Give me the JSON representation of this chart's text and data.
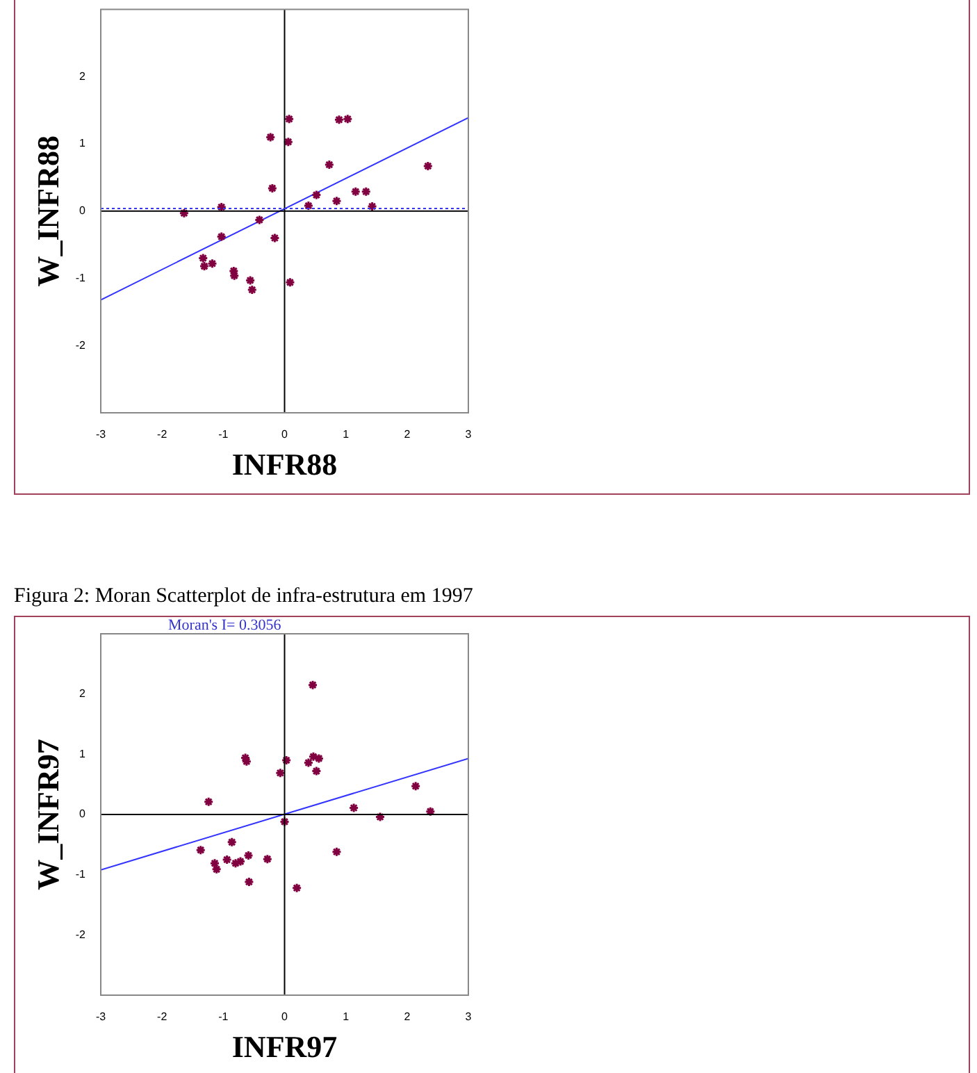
{
  "chart_data": [
    {
      "type": "scatter",
      "xlabel": "INFR88",
      "ylabel": "W_INFR88",
      "xlim": [
        -3,
        3
      ],
      "ylim": [
        -3,
        3
      ],
      "xticks": [
        -3,
        -2,
        -1,
        0,
        1,
        2,
        3
      ],
      "yticks": [
        -2,
        -1,
        0,
        1,
        2
      ],
      "grid": false,
      "legend": false,
      "marker": "cross",
      "series": [
        {
          "color": "#800040",
          "x": [
            0.075,
            -0.23,
            0.06,
            0.89,
            1.03,
            0.73,
            2.34,
            -0.2,
            0.52,
            1.16,
            1.33,
            0.85,
            0.39,
            1.43,
            -1.03,
            -1.64,
            -0.41,
            -1.03,
            -0.16,
            -1.33,
            -1.31,
            -1.18,
            -0.83,
            -0.82,
            -0.56,
            -0.53,
            0.09
          ],
          "values": [
            1.37,
            1.1,
            1.03,
            1.36,
            1.37,
            0.69,
            0.67,
            0.34,
            0.24,
            0.29,
            0.29,
            0.15,
            0.08,
            0.07,
            0.06,
            -0.03,
            -0.13,
            -0.38,
            -0.4,
            -0.7,
            -0.82,
            -0.78,
            -0.89,
            -0.96,
            -1.03,
            -1.17,
            -1.06
          ]
        },
        {
          "type": "line",
          "color": "#3333ff",
          "x": [
            -3,
            3
          ],
          "values": [
            -1.32,
            1.39
          ],
          "marker": "none"
        }
      ],
      "ref_lines": [
        {
          "axis": "x",
          "value": 0,
          "color": "#000000"
        },
        {
          "axis": "y",
          "value": 0,
          "color": "#000000"
        },
        {
          "axis": "y",
          "value": 0.04,
          "color": "#3333ff",
          "line_style": "dotted"
        }
      ]
    },
    {
      "type": "scatter",
      "title": "Figura 2: Moran Scatterplot de infra-estrutura em 1997",
      "annotations": [
        "Moran's I= 0.3056"
      ],
      "xlabel": "INFR97",
      "ylabel": "W_INFR97",
      "xlim": [
        -3,
        3
      ],
      "ylim": [
        -3,
        3
      ],
      "xticks": [
        -3,
        -2,
        -1,
        0,
        1,
        2,
        3
      ],
      "yticks": [
        -2,
        -1,
        0,
        1,
        2
      ],
      "grid": false,
      "legend": false,
      "marker": "cross",
      "series": [
        {
          "color": "#800040",
          "x": [
            0.46,
            -0.64,
            -0.62,
            0.03,
            0.47,
            0.56,
            0.39,
            -0.07,
            0.52,
            2.14,
            -1.24,
            1.13,
            2.38,
            1.56,
            0.0,
            -0.86,
            -1.37,
            0.85,
            -0.59,
            -0.28,
            -0.94,
            -1.14,
            -0.8,
            -0.72,
            -1.11,
            -0.58,
            0.2
          ],
          "values": [
            2.15,
            0.94,
            0.88,
            0.9,
            0.96,
            0.93,
            0.86,
            0.69,
            0.72,
            0.47,
            0.21,
            0.11,
            0.05,
            -0.04,
            -0.12,
            -0.46,
            -0.59,
            -0.62,
            -0.68,
            -0.74,
            -0.75,
            -0.81,
            -0.81,
            -0.78,
            -0.91,
            -1.12,
            -1.22
          ]
        },
        {
          "type": "line",
          "color": "#3333ff",
          "x": [
            -3,
            3
          ],
          "values": [
            -0.92,
            0.93
          ],
          "marker": "none"
        }
      ],
      "ref_lines": [
        {
          "axis": "x",
          "value": 0,
          "color": "#000000"
        },
        {
          "axis": "y",
          "value": 0,
          "color": "#000000"
        }
      ]
    }
  ]
}
